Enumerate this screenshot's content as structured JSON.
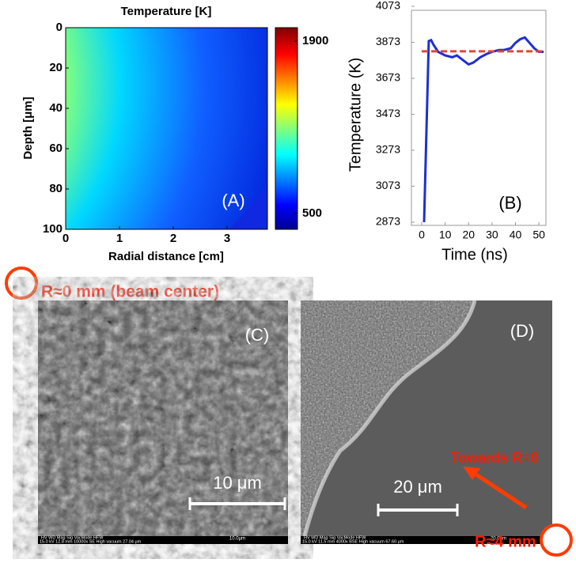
{
  "chart_data": [
    {
      "type": "heatmap",
      "title": "Temperature [K]",
      "x_label": "Radial distance [cm]",
      "y_label": "Depth [μm]",
      "annotation": "(A)",
      "xlim": [
        0,
        3.75
      ],
      "xticks": [
        0,
        1,
        2,
        3
      ],
      "ylim": [
        100,
        0
      ],
      "yticks": [
        0,
        20,
        40,
        60,
        80,
        100
      ],
      "colormap": "jet",
      "clim": [
        370,
        2010
      ],
      "colorbar_ticks": [
        1900,
        500
      ]
    },
    {
      "type": "line",
      "x_label": "Time (ns)",
      "y_label": "Temperature (K)",
      "annotation": "(B)",
      "xlim": [
        -4.4,
        53
      ],
      "xticks": [
        0,
        10,
        20,
        30,
        40,
        50
      ],
      "ylim": [
        2873,
        4073
      ],
      "yticks": [
        2873,
        3073,
        3273,
        3473,
        3673,
        3873,
        4073
      ],
      "series": [
        {
          "color": "#1f2fd0",
          "x": [
            1,
            3,
            4,
            5,
            7,
            10,
            13,
            15,
            18,
            20,
            22,
            25,
            28,
            30,
            33,
            35,
            38,
            40,
            42,
            44,
            46,
            48,
            50,
            52
          ],
          "values": [
            2873,
            3880,
            3885,
            3860,
            3820,
            3800,
            3790,
            3800,
            3770,
            3750,
            3760,
            3790,
            3810,
            3820,
            3830,
            3830,
            3840,
            3870,
            3890,
            3900,
            3870,
            3840,
            3820,
            3820
          ]
        },
        {
          "color": "#e0453a",
          "dashed": true,
          "x": [
            0,
            52
          ],
          "values": [
            3823,
            3823
          ]
        }
      ]
    }
  ],
  "images": [
    {
      "label": "(C)",
      "scale": "10 μm",
      "footer_header": "HV   WD   Mag  Sig  VacMode   HFW",
      "footer_values": "15.0 kV 12.8 mm 10000x SE High vacuum 27.04 μm",
      "footer_scale": "10.0μm"
    },
    {
      "label": "(D)",
      "scale": "20 μm",
      "footer_header": "HV   WD   Mag  Sig  VacMode   HFW",
      "footer_values": "15.0 kV 11.5 mm 4000x BSE High vacuum 67.60 μm",
      "footer_scale": "20.0μm"
    }
  ],
  "annotations": {
    "beam_center": "R≈0 mm (beam center)",
    "towards": "Towards R=0",
    "edge": "R≈4 mm"
  }
}
